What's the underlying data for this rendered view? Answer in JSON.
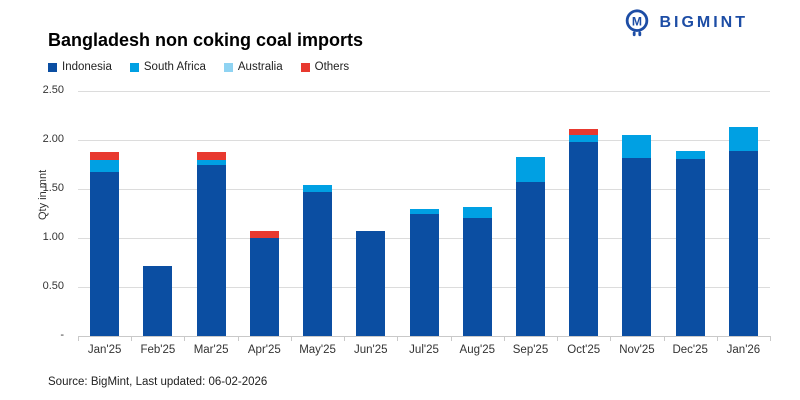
{
  "logo": {
    "text": "BIGMINT",
    "color": "#1d4da5"
  },
  "footer": {
    "source": "Source: BigMint, Last updated: 06-02-2026"
  },
  "chart_data": {
    "type": "bar",
    "stacked": true,
    "title": "Bangladesh non coking coal imports",
    "ylabel": "Qty in mnt",
    "ylim": [
      0,
      2.5
    ],
    "ytick_labels": [
      "2.50",
      "2.00",
      "1.50",
      "1.00",
      "0.50",
      "-"
    ],
    "grid": true,
    "legend_position": "top-left",
    "categories": [
      "Jan'25",
      "Feb'25",
      "Mar'25",
      "Apr'25",
      "May'25",
      "Jun'25",
      "Jul'25",
      "Aug'25",
      "Sep'25",
      "Oct'25",
      "Nov'25",
      "Dec'25",
      "Jan'26"
    ],
    "series": [
      {
        "name": "Indonesia",
        "color": "#0b4ea2",
        "values": [
          1.67,
          0.71,
          1.74,
          1.0,
          1.47,
          1.07,
          1.24,
          1.2,
          1.57,
          1.98,
          1.82,
          1.81,
          1.89
        ]
      },
      {
        "name": "South Africa",
        "color": "#00a0e3",
        "values": [
          0.13,
          0,
          0.06,
          0,
          0.07,
          0,
          0.06,
          0.12,
          0.26,
          0.07,
          0.23,
          0.08,
          0.24
        ]
      },
      {
        "name": "Australia",
        "color": "#8fd3f2",
        "values": [
          0,
          0,
          0,
          0,
          0,
          0,
          0,
          0,
          0,
          0,
          0,
          0,
          0
        ]
      },
      {
        "name": "Others",
        "color": "#e8392f",
        "values": [
          0.08,
          0,
          0.08,
          0.07,
          0,
          0,
          0,
          0,
          0,
          0.06,
          0,
          0,
          0
        ]
      }
    ],
    "totals": [
      1.88,
      0.71,
      1.88,
      1.07,
      1.54,
      1.07,
      1.3,
      1.32,
      1.83,
      2.11,
      2.05,
      1.89,
      2.13
    ],
    "colors": {
      "gridline": "#dcdcdc",
      "axis": "#c9c9c9",
      "text": "#333333"
    }
  }
}
